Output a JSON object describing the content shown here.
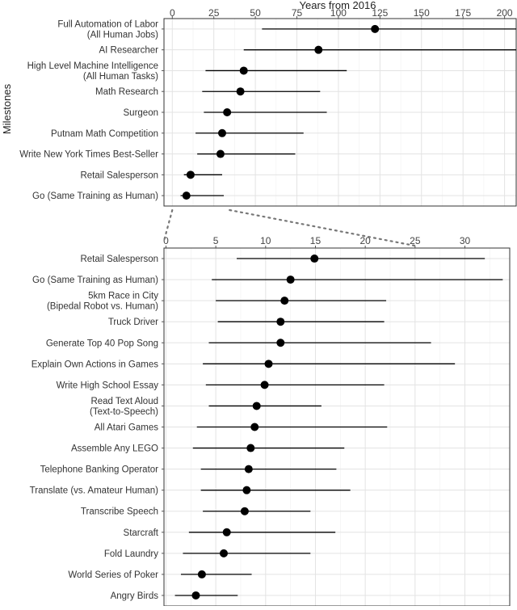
{
  "chart_data": [
    {
      "type": "dot-interval",
      "title": "",
      "xlabel": "Years from 2016",
      "ylabel": "Milestones",
      "xlim": [
        -5,
        207
      ],
      "xticks": [
        0,
        25,
        50,
        75,
        100,
        125,
        150,
        175,
        200
      ],
      "axis_position": "top",
      "grid": true,
      "categories": [
        "Full Automation of Labor\n(All Human Jobs)",
        "AI Researcher",
        "High Level Machine Intelligence\n(All Human Tasks)",
        "Math Research",
        "Surgeon",
        "Putnam Math Competition",
        "Write New York Times Best-Seller",
        "Retail Salesperson",
        "Go (Same Training as Human)"
      ],
      "median": [
        122,
        88,
        43,
        41,
        33,
        30,
        29,
        11,
        8.5
      ],
      "low": [
        54,
        43,
        20,
        18,
        19,
        14,
        15,
        7,
        5
      ],
      "high": [
        207,
        207,
        105,
        89,
        93,
        79,
        74,
        30,
        31
      ]
    },
    {
      "type": "dot-interval",
      "title": "",
      "xlabel": "",
      "ylabel": "",
      "xlim": [
        -0.2,
        34.5
      ],
      "xticks": [
        0,
        5,
        10,
        15,
        20,
        25,
        30
      ],
      "axis_position": "top",
      "grid": true,
      "categories": [
        "Retail Salesperson",
        "Go (Same Training as Human)",
        "5km Race in City\n(Bipedal Robot vs. Human)",
        "Truck Driver",
        "Generate Top 40 Pop Song",
        "Explain Own Actions in Games",
        "Write High School Essay",
        "Read Text Aloud\n(Text-to-Speech)",
        "All Atari Games",
        "Assemble Any LEGO",
        "Telephone Banking Operator",
        "Translate (vs. Amateur Human)",
        "Transcribe Speech",
        "Starcraft",
        "Fold Laundry",
        "World Series of Poker",
        "Angry Birds"
      ],
      "median": [
        14.9,
        12.5,
        11.9,
        11.5,
        11.5,
        10.3,
        9.9,
        9.1,
        8.9,
        8.5,
        8.3,
        8.1,
        7.9,
        6.1,
        5.8,
        3.6,
        3.0
      ],
      "low": [
        7.1,
        4.6,
        5.0,
        5.2,
        4.3,
        3.7,
        4.0,
        4.3,
        3.1,
        2.7,
        3.5,
        3.5,
        3.7,
        2.3,
        1.7,
        1.5,
        0.9
      ],
      "high": [
        32.0,
        33.8,
        22.1,
        21.9,
        26.6,
        29.0,
        21.9,
        15.6,
        22.2,
        17.9,
        17.1,
        18.5,
        14.5,
        17.0,
        14.5,
        8.6,
        7.2
      ]
    }
  ]
}
